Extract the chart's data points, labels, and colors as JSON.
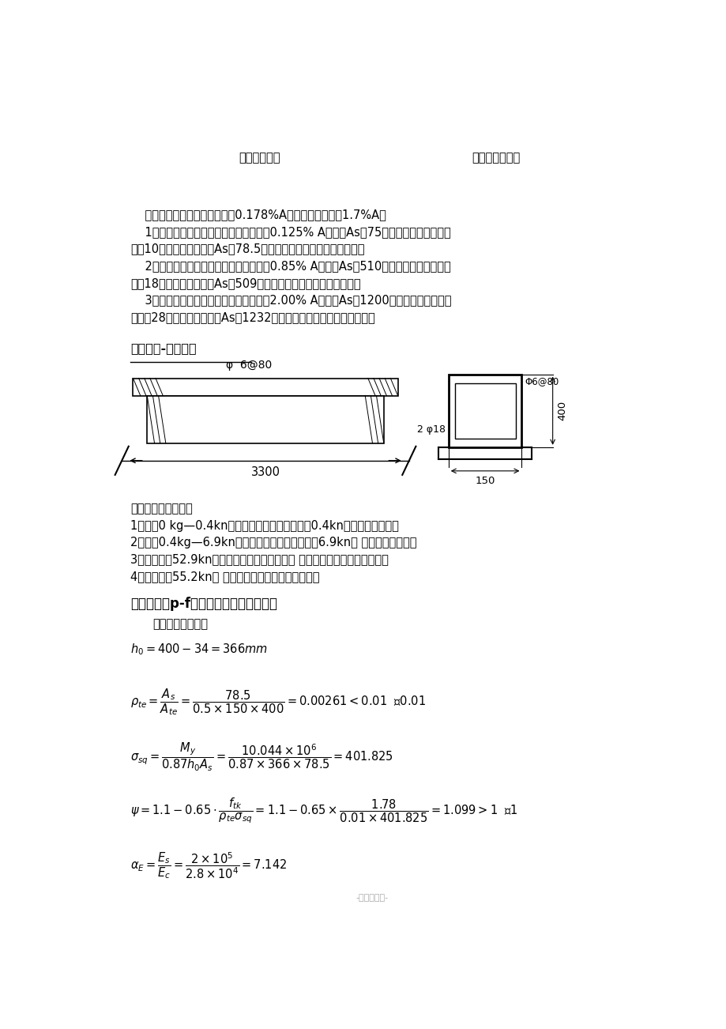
{
  "bg_color": "#ffffff",
  "page_width": 9.2,
  "page_height": 13.02,
  "top_label_left": "（受力简图）",
  "top_label_right": "（设计截面图）",
  "para_lines": [
    "    经计算该梁的最小配筋面积为0.178%A，最大配筋面积为1.7%A。",
    "    1、在进行少筋破坏计算时配筋面积采用0.125% A、计算As为75平方毫米，采用一根直",
    "径为10的三级钢筋，实际As为78.5平方毫米，经检验满足构造要求。",
    "    2、在进行适筋破坏计算时配筋面积采用0.85% A、计算As为510平方毫米，采用两根直",
    "径为18的三级钢筋，实际As为509平方毫米，经检验满足构造要求。",
    "    3、在进行超筋破坏计算时配筋面积采用2.00% A、计算As为1200平方毫米，采用两根",
    "直径为28的三级钢筋，实际As为1232平方毫米，经检验满足构造要求。"
  ],
  "section_title": "适筋破坏-配筋截面",
  "stirrup_label_beam": "φ  6@80",
  "stirrup_label_section": "Φ6@80",
  "rebar_label": "2 φ18",
  "dim_beam": "3300",
  "dim_height": "400",
  "dim_width": "150",
  "load_title": "模拟实验加载数据：",
  "load_items": [
    "1、荷载0 kg—0.4kn属于弹性阶段，当荷载达到0.4kn后进入塑形阶段。",
    "2、荷载0.4kg—6.9kn属于塑性阶段，当荷载达到6.9kn后 混凝土开始开裂。",
    "3、荷载达到52.9kn时钢筋达到受拉屈服强度但 混凝土还未定达到抗压峰值。",
    "4、荷载达到55.2kn时 混凝土达到抗压峰值该梁破坏。"
  ],
  "calc_title": "绘出试验梁p-f变形曲线。（计算挠度）",
  "calc_subtitle": "极限状态下的挠度",
  "watermark": "-可编辑修改-",
  "font_size_body": 10.5,
  "font_size_section": 11.5,
  "font_size_calc_title": 12.0
}
